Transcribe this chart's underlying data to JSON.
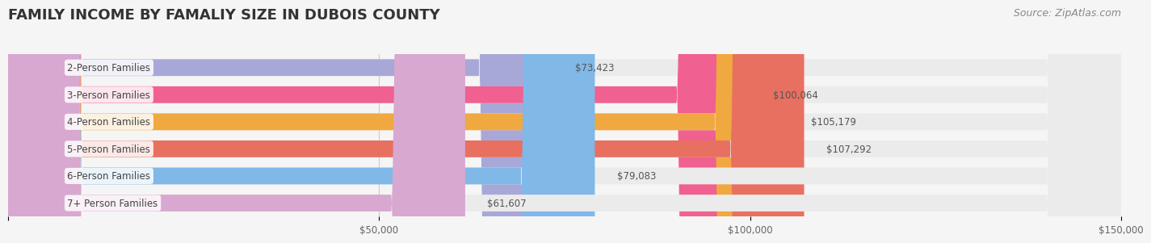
{
  "title": "FAMILY INCOME BY FAMALIY SIZE IN DUBOIS COUNTY",
  "source": "Source: ZipAtlas.com",
  "categories": [
    "2-Person Families",
    "3-Person Families",
    "4-Person Families",
    "5-Person Families",
    "6-Person Families",
    "7+ Person Families"
  ],
  "values": [
    73423,
    100064,
    105179,
    107292,
    79083,
    61607
  ],
  "bar_colors": [
    "#a8a8d8",
    "#f06090",
    "#f0a840",
    "#e87060",
    "#80b8e8",
    "#d8a8d0"
  ],
  "label_colors": [
    "#a8a8d8",
    "#f06090",
    "#f0a840",
    "#e87060",
    "#80b8e8",
    "#d8a8d0"
  ],
  "xlim": [
    0,
    150000
  ],
  "xticks": [
    0,
    50000,
    100000,
    150000
  ],
  "xtick_labels": [
    "",
    "$50,000",
    "$100,000",
    "$150,000"
  ],
  "background_color": "#f5f5f5",
  "bar_background": "#ebebeb",
  "title_fontsize": 13,
  "source_fontsize": 9,
  "bar_height": 0.62,
  "figsize": [
    14.06,
    3.05
  ]
}
